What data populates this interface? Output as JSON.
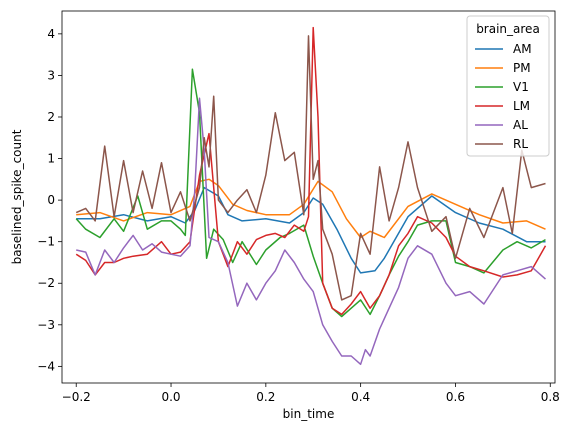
{
  "chart_data": {
    "type": "line",
    "xlabel": "bin_time",
    "ylabel": "baselined_spike_count",
    "xlim": [
      -0.23,
      0.81
    ],
    "ylim": [
      -4.4,
      4.55
    ],
    "xticks": [
      -0.2,
      0.0,
      0.2,
      0.4,
      0.6,
      0.8
    ],
    "xtick_labels": [
      "−0.2",
      "0.0",
      "0.2",
      "0.4",
      "0.6",
      "0.8"
    ],
    "yticks": [
      -4,
      -3,
      -2,
      -1,
      0,
      1,
      2,
      3,
      4
    ],
    "ytick_labels": [
      "−4",
      "−3",
      "−2",
      "−1",
      "0",
      "1",
      "2",
      "3",
      "4"
    ],
    "grid": false,
    "legend": {
      "title": "brain_area",
      "placement": "top-right"
    },
    "series": [
      {
        "name": "AM",
        "color": "#1f77b4",
        "x": [
          -0.2,
          -0.15,
          -0.1,
          -0.05,
          0.0,
          0.03,
          0.05,
          0.07,
          0.1,
          0.12,
          0.15,
          0.2,
          0.25,
          0.28,
          0.3,
          0.32,
          0.35,
          0.38,
          0.4,
          0.43,
          0.45,
          0.5,
          0.55,
          0.6,
          0.65,
          0.7,
          0.75,
          0.79
        ],
        "y": [
          -0.45,
          -0.45,
          -0.35,
          -0.5,
          -0.4,
          -0.55,
          -0.25,
          0.3,
          0.1,
          -0.35,
          -0.5,
          -0.45,
          -0.55,
          -0.3,
          0.05,
          -0.1,
          -0.7,
          -1.4,
          -1.75,
          -1.7,
          -1.4,
          -0.4,
          0.1,
          -0.3,
          -0.55,
          -0.7,
          -1.0,
          -1.0
        ]
      },
      {
        "name": "PM",
        "color": "#ff7f0e",
        "x": [
          -0.2,
          -0.15,
          -0.1,
          -0.05,
          0.0,
          0.04,
          0.06,
          0.08,
          0.1,
          0.13,
          0.16,
          0.2,
          0.25,
          0.28,
          0.31,
          0.34,
          0.37,
          0.4,
          0.42,
          0.45,
          0.5,
          0.55,
          0.6,
          0.65,
          0.7,
          0.75,
          0.79
        ],
        "y": [
          -0.35,
          -0.3,
          -0.5,
          -0.3,
          -0.35,
          -0.15,
          0.45,
          0.5,
          0.35,
          -0.1,
          -0.25,
          -0.35,
          -0.35,
          -0.1,
          0.45,
          0.2,
          -0.45,
          -0.9,
          -0.75,
          -0.9,
          -0.15,
          0.15,
          -0.1,
          -0.35,
          -0.55,
          -0.5,
          -0.7
        ]
      },
      {
        "name": "V1",
        "color": "#2ca02c",
        "x": [
          -0.2,
          -0.18,
          -0.15,
          -0.12,
          -0.1,
          -0.07,
          -0.05,
          -0.02,
          0.0,
          0.02,
          0.03,
          0.045,
          0.06,
          0.075,
          0.09,
          0.11,
          0.13,
          0.15,
          0.18,
          0.2,
          0.23,
          0.25,
          0.28,
          0.3,
          0.32,
          0.34,
          0.36,
          0.38,
          0.4,
          0.42,
          0.44,
          0.46,
          0.48,
          0.5,
          0.52,
          0.55,
          0.58,
          0.6,
          0.63,
          0.66,
          0.7,
          0.73,
          0.76,
          0.79
        ],
        "y": [
          -0.45,
          -0.7,
          -0.9,
          -0.45,
          -0.75,
          0.1,
          -0.7,
          -0.5,
          -0.5,
          -0.7,
          -0.85,
          3.15,
          2.1,
          -1.4,
          -0.7,
          -0.95,
          -1.5,
          -1.0,
          -1.55,
          -1.2,
          -0.9,
          -0.8,
          -0.6,
          -1.35,
          -2.0,
          -2.6,
          -2.8,
          -2.6,
          -2.4,
          -2.75,
          -2.3,
          -1.8,
          -1.35,
          -1.0,
          -0.6,
          -0.5,
          -0.5,
          -1.5,
          -1.6,
          -1.75,
          -1.2,
          -1.0,
          -1.15,
          -0.95
        ]
      },
      {
        "name": "LM",
        "color": "#d62728",
        "x": [
          -0.2,
          -0.18,
          -0.16,
          -0.14,
          -0.12,
          -0.1,
          -0.08,
          -0.05,
          -0.02,
          0.0,
          0.02,
          0.04,
          0.06,
          0.08,
          0.1,
          0.12,
          0.14,
          0.16,
          0.18,
          0.2,
          0.22,
          0.24,
          0.26,
          0.28,
          0.29,
          0.3,
          0.31,
          0.32,
          0.34,
          0.36,
          0.38,
          0.4,
          0.42,
          0.44,
          0.46,
          0.48,
          0.5,
          0.52,
          0.55,
          0.58,
          0.6,
          0.63,
          0.66,
          0.7,
          0.73,
          0.76,
          0.79
        ],
        "y": [
          -1.3,
          -1.45,
          -1.8,
          -1.5,
          -1.5,
          -1.4,
          -1.35,
          -1.3,
          -1.0,
          -1.3,
          -1.25,
          -1.0,
          0.6,
          1.6,
          -1.0,
          -1.6,
          -1.0,
          -1.3,
          -0.95,
          -0.85,
          -0.8,
          -0.9,
          -0.6,
          -0.75,
          -0.4,
          4.15,
          2.0,
          -2.0,
          -2.6,
          -2.75,
          -2.5,
          -2.2,
          -2.6,
          -2.3,
          -1.8,
          -1.1,
          -0.8,
          -0.4,
          -0.55,
          -0.9,
          -1.35,
          -1.6,
          -1.7,
          -1.85,
          -1.8,
          -1.7,
          -1.1
        ]
      },
      {
        "name": "AL",
        "color": "#9467bd",
        "x": [
          -0.2,
          -0.18,
          -0.16,
          -0.14,
          -0.12,
          -0.1,
          -0.08,
          -0.06,
          -0.04,
          -0.02,
          0.0,
          0.02,
          0.04,
          0.05,
          0.06,
          0.07,
          0.08,
          0.1,
          0.12,
          0.14,
          0.16,
          0.18,
          0.2,
          0.22,
          0.24,
          0.26,
          0.28,
          0.3,
          0.32,
          0.34,
          0.36,
          0.38,
          0.4,
          0.41,
          0.42,
          0.44,
          0.46,
          0.48,
          0.5,
          0.52,
          0.55,
          0.58,
          0.6,
          0.63,
          0.66,
          0.7,
          0.73,
          0.76,
          0.79
        ],
        "y": [
          -1.2,
          -1.25,
          -1.8,
          -1.2,
          -1.5,
          -1.15,
          -0.85,
          -1.2,
          -1.05,
          -1.25,
          -1.3,
          -1.35,
          -1.1,
          0.2,
          2.45,
          1.2,
          -0.9,
          -1.0,
          -1.5,
          -2.55,
          -2.0,
          -2.4,
          -2.0,
          -1.7,
          -1.2,
          -1.5,
          -1.9,
          -2.2,
          -3.0,
          -3.4,
          -3.75,
          -3.75,
          -3.95,
          -3.6,
          -3.75,
          -3.1,
          -2.6,
          -2.1,
          -1.4,
          -1.1,
          -1.3,
          -2.0,
          -2.3,
          -2.2,
          -2.5,
          -1.8,
          -1.7,
          -1.6,
          -1.9
        ]
      },
      {
        "name": "RL",
        "color": "#8c564b",
        "x": [
          -0.2,
          -0.18,
          -0.16,
          -0.14,
          -0.12,
          -0.1,
          -0.08,
          -0.06,
          -0.04,
          -0.02,
          0.0,
          0.02,
          0.04,
          0.06,
          0.07,
          0.08,
          0.09,
          0.1,
          0.12,
          0.14,
          0.16,
          0.18,
          0.2,
          0.22,
          0.24,
          0.26,
          0.28,
          0.29,
          0.3,
          0.31,
          0.32,
          0.34,
          0.36,
          0.38,
          0.4,
          0.42,
          0.44,
          0.46,
          0.48,
          0.5,
          0.52,
          0.55,
          0.58,
          0.6,
          0.63,
          0.66,
          0.7,
          0.72,
          0.74,
          0.76,
          0.79
        ],
        "y": [
          -0.3,
          -0.2,
          -0.5,
          1.3,
          -0.4,
          0.95,
          -0.3,
          0.7,
          -0.2,
          0.9,
          -0.3,
          0.2,
          -0.5,
          0.3,
          1.5,
          0.8,
          2.5,
          0.0,
          -0.3,
          0.0,
          0.25,
          -0.3,
          0.6,
          2.1,
          0.95,
          1.15,
          -0.35,
          3.95,
          0.5,
          0.95,
          -0.7,
          -1.3,
          -2.4,
          -2.3,
          -0.8,
          -1.3,
          0.8,
          -0.5,
          0.3,
          1.4,
          0.3,
          -0.75,
          -0.4,
          -1.4,
          -0.2,
          -0.9,
          0.3,
          -0.8,
          1.2,
          0.3,
          0.4
        ]
      }
    ]
  }
}
